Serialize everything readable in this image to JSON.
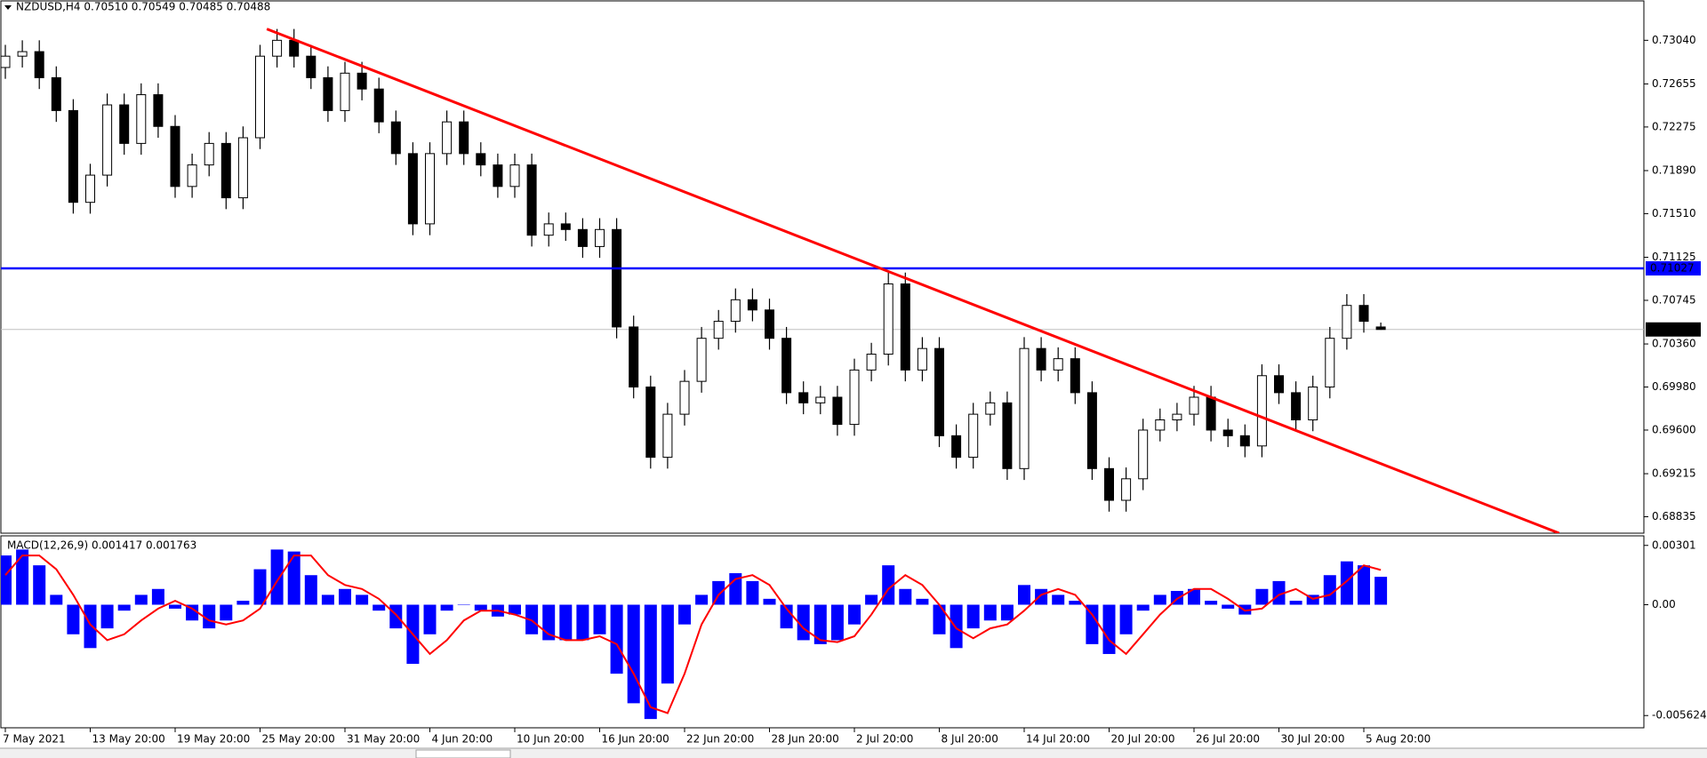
{
  "chart_data": [
    {
      "type": "candlestick",
      "title": "NZDUSD,H4  0.70510 0.70549 0.70485 0.70488",
      "categories": [
        "7 May 2021",
        null,
        null,
        null,
        null,
        "13 May 20:00",
        null,
        null,
        null,
        null,
        "19 May 20:00",
        null,
        null,
        null,
        null,
        "25 May 20:00",
        null,
        null,
        null,
        null,
        "31 May 20:00",
        null,
        null,
        null,
        null,
        "4 Jun 20:00",
        null,
        null,
        null,
        null,
        "10 Jun 20:00",
        null,
        null,
        null,
        null,
        "16 Jun 20:00",
        null,
        null,
        null,
        null,
        "22 Jun 20:00",
        null,
        null,
        null,
        null,
        "28 Jun 20:00",
        null,
        null,
        null,
        null,
        "2 Jul 20:00",
        null,
        null,
        null,
        null,
        "8 Jul 20:00",
        null,
        null,
        null,
        null,
        "14 Jul 20:00",
        null,
        null,
        null,
        null,
        "20 Jul 20:00",
        null,
        null,
        null,
        null,
        "26 Jul 20:00",
        null,
        null,
        null,
        null,
        "30 Jul 20:00",
        null,
        null,
        null,
        null,
        "5 Aug 20:00",
        null
      ],
      "open": [
        0.728,
        0.729,
        0.7294,
        0.7271,
        0.7242,
        0.7161,
        0.7185,
        0.7247,
        0.7213,
        0.7256,
        0.7228,
        0.7175,
        0.7194,
        0.7213,
        0.7165,
        0.7218,
        0.729,
        0.7304,
        0.729,
        0.7271,
        0.7242,
        0.7275,
        0.7261,
        0.7232,
        0.7204,
        0.7142,
        0.7204,
        0.7232,
        0.7204,
        0.7194,
        0.7175,
        0.7194,
        0.7132,
        0.7142,
        0.7137,
        0.7122,
        0.7137,
        0.7051,
        0.6998,
        0.6936,
        0.6974,
        0.7003,
        0.7041,
        0.7056,
        0.7075,
        0.7066,
        0.7041,
        0.6993,
        0.6984,
        0.6989,
        0.6965,
        0.7013,
        0.7027,
        0.7089,
        0.7013,
        0.7032,
        0.6955,
        0.6936,
        0.6974,
        0.6984,
        0.6926,
        0.7032,
        0.7013,
        0.7023,
        0.6993,
        0.6926,
        0.6898,
        0.6917,
        0.696,
        0.6969,
        0.6974,
        0.6989,
        0.696,
        0.6955,
        0.6946,
        0.7008,
        0.6993,
        0.6969,
        0.6998,
        0.7041,
        0.707,
        0.7051
      ],
      "high": [
        0.73,
        0.7304,
        0.7304,
        0.7281,
        0.7252,
        0.7195,
        0.7257,
        0.7257,
        0.7266,
        0.7266,
        0.7238,
        0.7204,
        0.7223,
        0.7223,
        0.7228,
        0.73,
        0.7314,
        0.7314,
        0.73,
        0.7281,
        0.7285,
        0.7285,
        0.7271,
        0.7242,
        0.7214,
        0.7214,
        0.7242,
        0.7242,
        0.7214,
        0.7204,
        0.7204,
        0.7204,
        0.7152,
        0.7152,
        0.7147,
        0.7147,
        0.7147,
        0.7061,
        0.7008,
        0.6984,
        0.7013,
        0.7051,
        0.7066,
        0.7085,
        0.7085,
        0.7076,
        0.7051,
        0.7003,
        0.6999,
        0.6999,
        0.7023,
        0.7037,
        0.7099,
        0.7099,
        0.7042,
        0.7042,
        0.6965,
        0.6984,
        0.6994,
        0.6994,
        0.7042,
        0.7042,
        0.7033,
        0.7033,
        0.7003,
        0.6936,
        0.6927,
        0.697,
        0.6979,
        0.6984,
        0.6999,
        0.6999,
        0.697,
        0.6965,
        0.7018,
        0.7018,
        0.7003,
        0.7008,
        0.7051,
        0.708,
        0.708,
        0.70549
      ],
      "low": [
        0.727,
        0.728,
        0.7261,
        0.7232,
        0.7151,
        0.7151,
        0.7175,
        0.7203,
        0.7203,
        0.7218,
        0.7165,
        0.7165,
        0.7184,
        0.7155,
        0.7155,
        0.7208,
        0.728,
        0.728,
        0.7261,
        0.7232,
        0.7232,
        0.7251,
        0.7222,
        0.7194,
        0.7132,
        0.7132,
        0.7194,
        0.7194,
        0.7184,
        0.7165,
        0.7165,
        0.7122,
        0.7122,
        0.7127,
        0.7112,
        0.7112,
        0.7041,
        0.6988,
        0.6926,
        0.6926,
        0.6964,
        0.6993,
        0.7031,
        0.7046,
        0.7056,
        0.7031,
        0.6983,
        0.6974,
        0.6974,
        0.6955,
        0.6955,
        0.7003,
        0.7017,
        0.7003,
        0.7003,
        0.6945,
        0.6926,
        0.6926,
        0.6964,
        0.6916,
        0.6916,
        0.7003,
        0.7003,
        0.6983,
        0.6916,
        0.6888,
        0.6888,
        0.6907,
        0.695,
        0.6959,
        0.6964,
        0.695,
        0.6945,
        0.6936,
        0.6936,
        0.6983,
        0.6959,
        0.6959,
        0.6988,
        0.7031,
        0.7046,
        0.70485
      ],
      "close": [
        0.729,
        0.7294,
        0.7271,
        0.7242,
        0.7161,
        0.7185,
        0.7247,
        0.7213,
        0.7256,
        0.7228,
        0.7175,
        0.7194,
        0.7213,
        0.7165,
        0.7218,
        0.729,
        0.7304,
        0.729,
        0.7271,
        0.7242,
        0.7275,
        0.7261,
        0.7232,
        0.7204,
        0.7142,
        0.7204,
        0.7232,
        0.7204,
        0.7194,
        0.7175,
        0.7194,
        0.7132,
        0.7142,
        0.7137,
        0.7122,
        0.7137,
        0.7051,
        0.6998,
        0.6936,
        0.6974,
        0.7003,
        0.7041,
        0.7056,
        0.7075,
        0.7066,
        0.7041,
        0.6993,
        0.6984,
        0.6989,
        0.6965,
        0.7013,
        0.7027,
        0.7089,
        0.7013,
        0.7032,
        0.6955,
        0.6936,
        0.6974,
        0.6984,
        0.6926,
        0.7032,
        0.7013,
        0.7023,
        0.6993,
        0.6926,
        0.6898,
        0.6917,
        0.696,
        0.6969,
        0.6974,
        0.6989,
        0.696,
        0.6955,
        0.6946,
        0.7008,
        0.6993,
        0.6969,
        0.6998,
        0.7041,
        0.707,
        0.7056,
        0.70488
      ],
      "ylim": [
        0.6869,
        0.7338
      ],
      "yticks": [
        {
          "value": 0.7304,
          "label": "0.73040"
        },
        0.72655,
        0.72275,
        {
          "value": 0.7189,
          "label": "0.71890"
        },
        {
          "value": 0.7151,
          "label": "0.71510"
        },
        0.71125,
        0.70745,
        {
          "value": 0.7036,
          "label": "0.70360"
        },
        {
          "value": 0.6998,
          "label": "0.69980"
        },
        {
          "value": 0.696,
          "label": "0.69600"
        },
        0.69215,
        0.68835
      ],
      "hline": {
        "value": 0.71027,
        "color": "#0000ff"
      },
      "current_price": {
        "value": 0.70488,
        "color": "#c0c0c0"
      },
      "trendline": {
        "x": [
          15.4,
          91.5
        ],
        "y": [
          0.7314,
          0.6869
        ],
        "color": "#ff0000"
      }
    },
    {
      "type": "macd",
      "title": "MACD(12,26,9) 0.001417 0.001763",
      "series": [
        {
          "type": "bar",
          "color": "#0000ff",
          "values": [
            0.0025,
            0.0028,
            0.002,
            0.0005,
            -0.0015,
            -0.0022,
            -0.0012,
            -0.0003,
            0.0005,
            0.0008,
            -0.0002,
            -0.0008,
            -0.0012,
            -0.0008,
            0.0002,
            0.0018,
            0.0028,
            0.0027,
            0.0015,
            0.0005,
            0.0008,
            0.0005,
            -0.0003,
            -0.0012,
            -0.003,
            -0.0015,
            -0.0003,
            0,
            -0.0003,
            -0.0006,
            -0.0005,
            -0.0015,
            -0.0018,
            -0.0018,
            -0.0018,
            -0.0015,
            -0.0035,
            -0.005,
            -0.0058,
            -0.004,
            -0.001,
            0.0005,
            0.0012,
            0.0016,
            0.0012,
            0.0003,
            -0.0012,
            -0.0018,
            -0.002,
            -0.0018,
            -0.001,
            0.0005,
            0.002,
            0.0008,
            0.0003,
            -0.0015,
            -0.0022,
            -0.0012,
            -0.0008,
            -0.0008,
            0.001,
            0.0008,
            0.0005,
            0.0002,
            -0.002,
            -0.0025,
            -0.0015,
            -0.0003,
            0.0005,
            0.0007,
            0.0008,
            0.0002,
            -0.0002,
            -0.0005,
            0.0008,
            0.0012,
            0.0002,
            0.0005,
            0.0015,
            0.0022,
            0.002,
            0.001417
          ]
        },
        {
          "type": "line",
          "color": "#ff0000",
          "values": [
            0.0015,
            0.0025,
            0.0025,
            0.0018,
            0.0005,
            -0.001,
            -0.0018,
            -0.0015,
            -0.0008,
            -0.0002,
            0.0002,
            -0.0002,
            -0.0008,
            -0.001,
            -0.0008,
            -0.0002,
            0.0012,
            0.0025,
            0.0025,
            0.0015,
            0.001,
            0.0008,
            0.0003,
            -0.0005,
            -0.0015,
            -0.0025,
            -0.0018,
            -0.0008,
            -0.0003,
            -0.0003,
            -0.0005,
            -0.0008,
            -0.0015,
            -0.0018,
            -0.0018,
            -0.0016,
            -0.002,
            -0.0035,
            -0.0052,
            -0.0055,
            -0.0035,
            -0.001,
            0.0005,
            0.0013,
            0.0015,
            0.001,
            -0.0002,
            -0.0012,
            -0.0018,
            -0.0019,
            -0.0016,
            -0.0005,
            0.0008,
            0.0015,
            0.001,
            0.0,
            -0.0012,
            -0.0017,
            -0.0012,
            -0.001,
            -0.0003,
            0.0005,
            0.0008,
            0.0005,
            -0.0005,
            -0.0018,
            -0.0025,
            -0.0015,
            -0.0005,
            0.0003,
            0.0008,
            0.0008,
            0.0003,
            -0.0003,
            -0.0002,
            0.0005,
            0.0008,
            0.0003,
            0.0005,
            0.0012,
            0.002,
            0.001763
          ]
        }
      ],
      "ylim": [
        -0.0062,
        0.00345
      ],
      "yticks": [
        0.00301,
        {
          "value": 0,
          "label": "0.00"
        },
        -0.005624
      ]
    }
  ]
}
